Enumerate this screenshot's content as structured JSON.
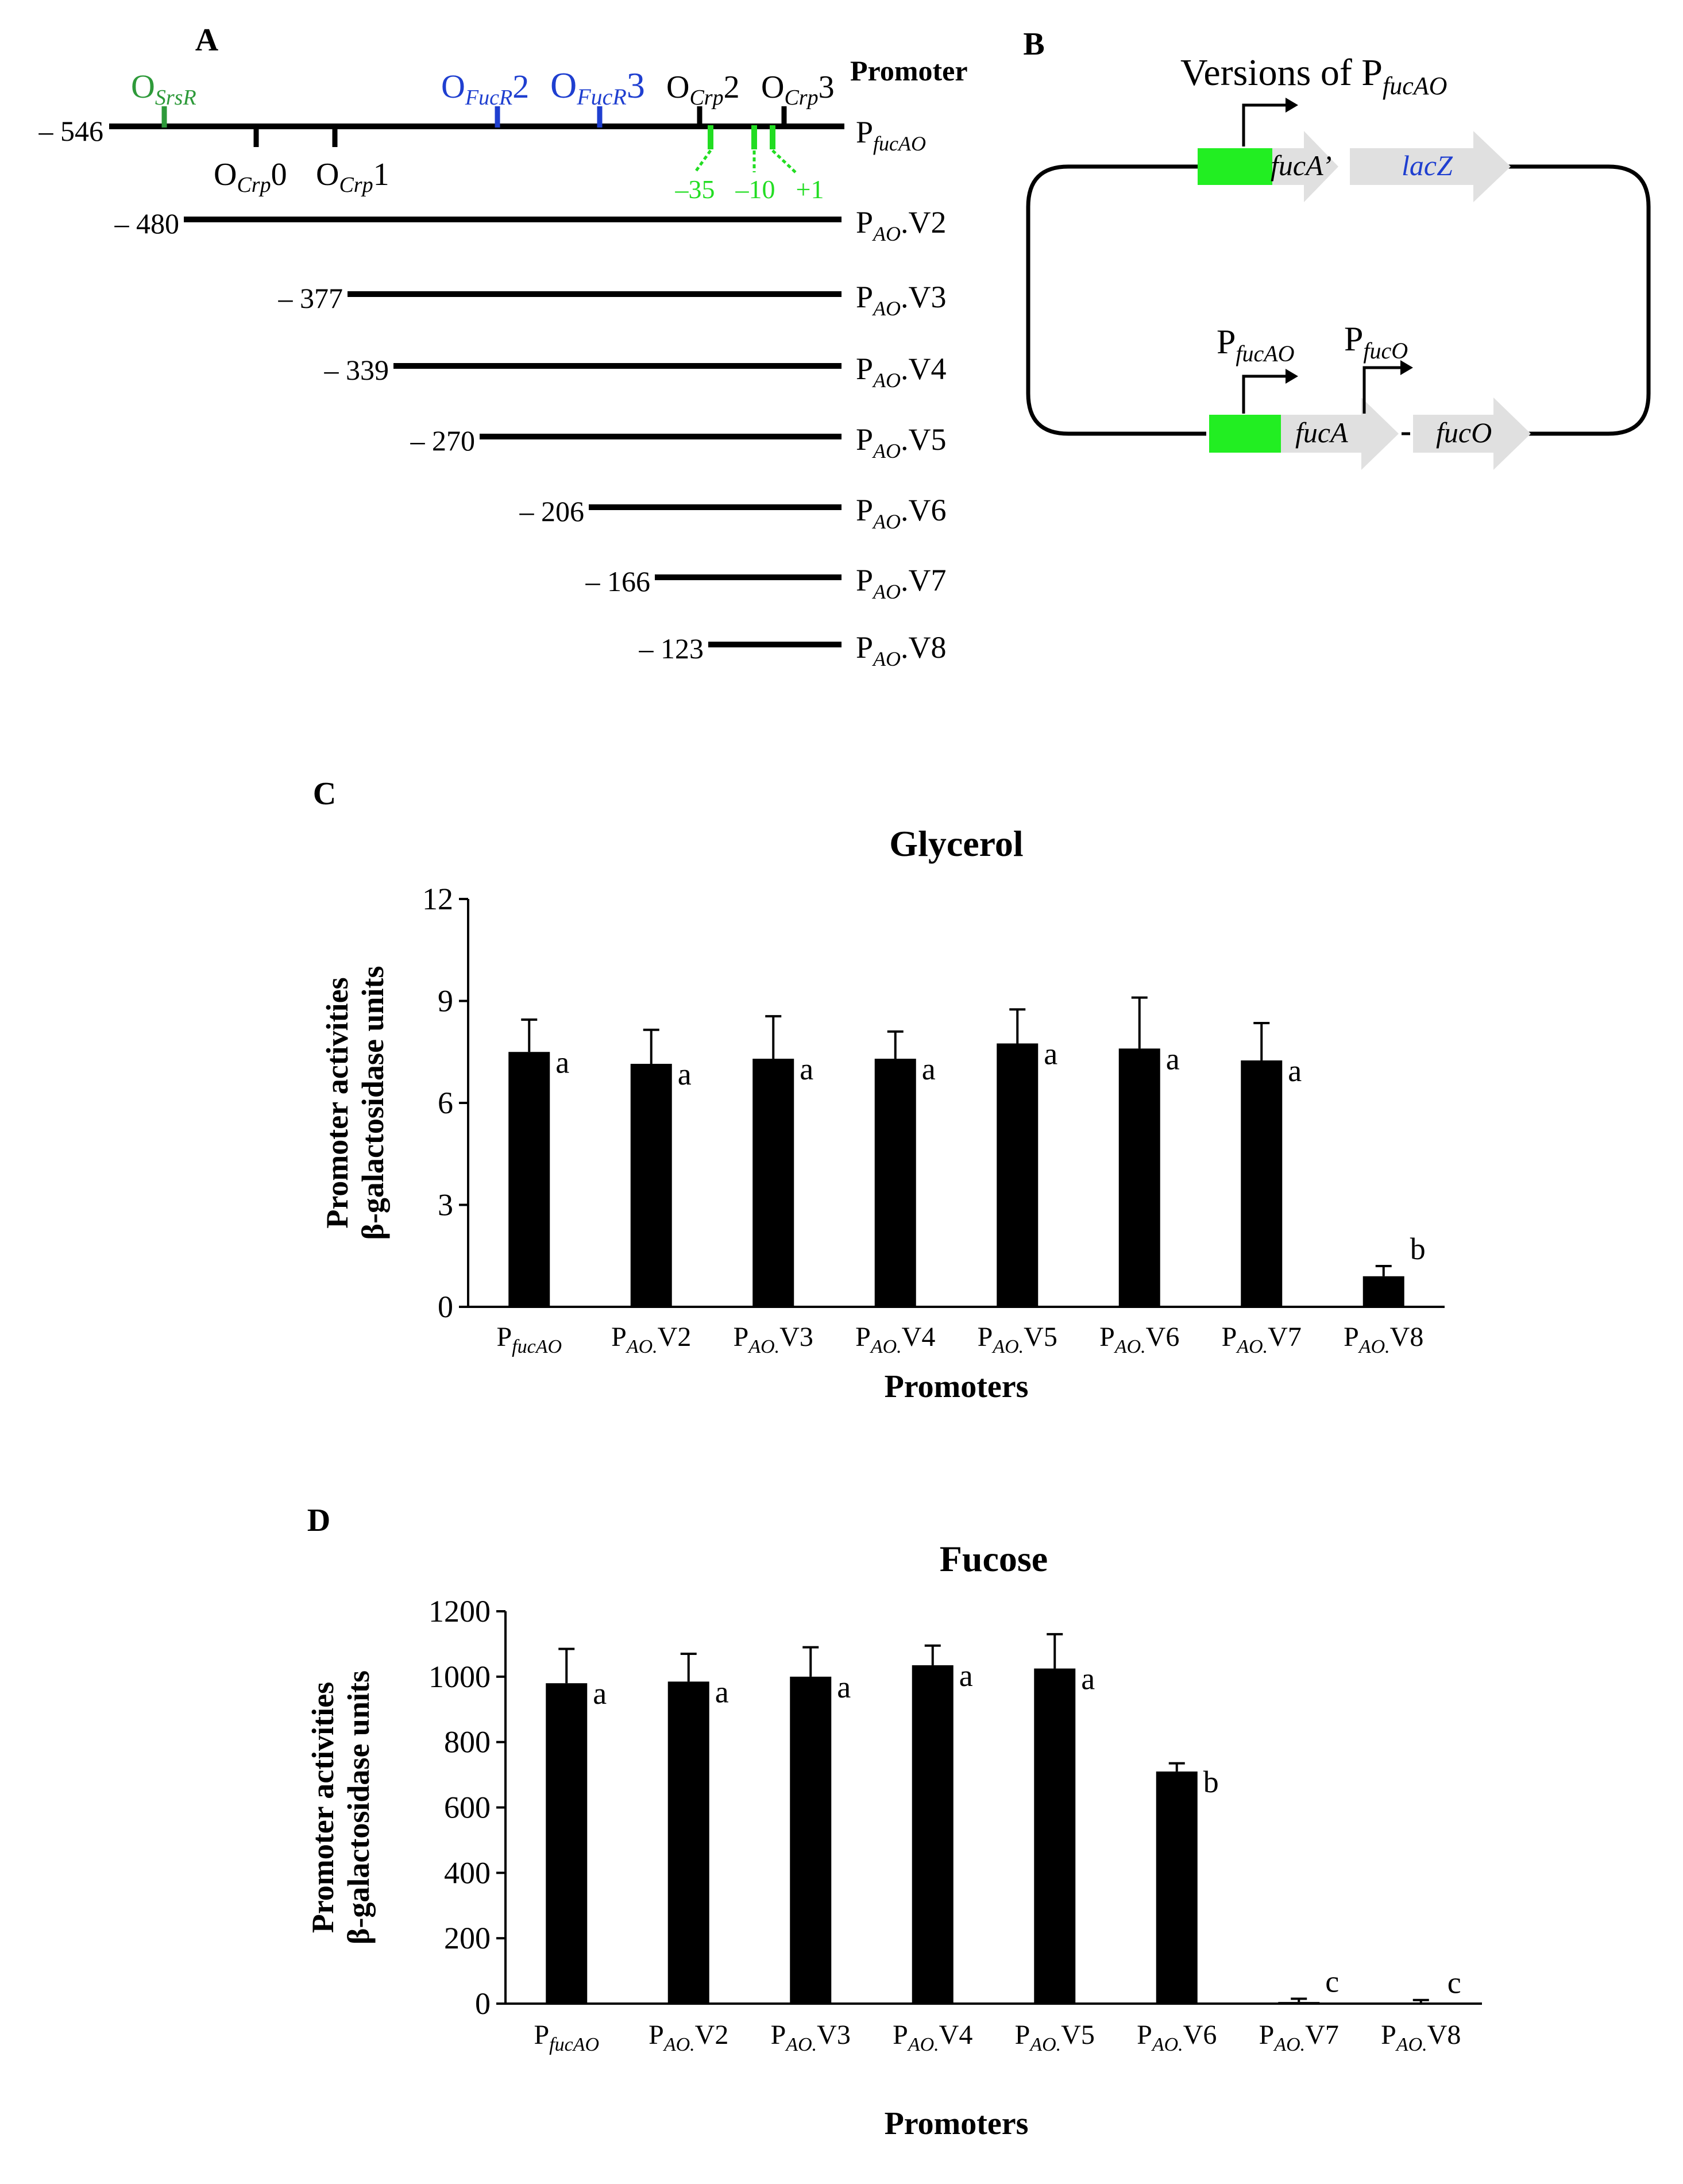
{
  "panels": {
    "A": {
      "letter": "A",
      "promoter_header": "Promoter"
    },
    "B": {
      "letter": "B",
      "title_main": "Versions of P",
      "title_sub": "fucAO",
      "plasmid_top": {
        "gene1": "fucA’",
        "gene2": "lacZ"
      },
      "plasmid_bottom": {
        "promoter1_main": "P",
        "promoter1_sub": "fucAO",
        "promoter2_main": "P",
        "promoter2_sub": "fucO",
        "gene1": "fucA",
        "gene2": "fucO"
      }
    },
    "C": {
      "letter": "C"
    },
    "D": {
      "letter": "D"
    }
  },
  "promoter_map": {
    "full": {
      "start": "– 546",
      "name_main": "P",
      "name_sub": "fucAO"
    },
    "sites_top": [
      {
        "main": "O",
        "sub": "SrsR",
        "color": "#2e9a3a"
      },
      {
        "main": "O",
        "sub": "FucR",
        "suffix": "2",
        "color": "#1f3fd0"
      },
      {
        "main": "O",
        "sub": "FucR",
        "suffix": "3",
        "color": "#1f3fd0"
      },
      {
        "main": "O",
        "sub": "Crp",
        "suffix": "2",
        "color": "#000000"
      },
      {
        "main": "O",
        "sub": "Crp",
        "suffix": "3",
        "color": "#000000"
      }
    ],
    "sites_bottom": [
      {
        "main": "O",
        "sub": "Crp",
        "suffix": "0"
      },
      {
        "main": "O",
        "sub": "Crp",
        "suffix": "1"
      }
    ],
    "core_elements": {
      "color": "#22dd22",
      "labels": [
        "–35",
        "–10",
        "+1"
      ]
    },
    "versions": [
      {
        "start": "– 480",
        "main": "P",
        "sub": "AO",
        "suffix": ".V2"
      },
      {
        "start": "– 377",
        "main": "P",
        "sub": "AO",
        "suffix": ".V3"
      },
      {
        "start": "– 339",
        "main": "P",
        "sub": "AO",
        "suffix": ".V4"
      },
      {
        "start": "– 270",
        "main": "P",
        "sub": "AO",
        "suffix": ".V5"
      },
      {
        "start": "– 206",
        "main": "P",
        "sub": "AO",
        "suffix": ".V6"
      },
      {
        "start": "– 166",
        "main": "P",
        "sub": "AO",
        "suffix": ".V7"
      },
      {
        "start": "– 123",
        "main": "P",
        "sub": "AO",
        "suffix": ".V8"
      }
    ]
  },
  "colors": {
    "bar": "#000000",
    "promoter_box": "#22ee22",
    "gene_arrow": "#e0e0e0",
    "lacz_text": "#1f3fd0"
  },
  "chart_data": [
    {
      "type": "bar",
      "title": "Glycerol",
      "xlabel": "Promoters",
      "ylabel_line1": "Promoter activities",
      "ylabel_line2": "β-galactosidase units",
      "ylim": [
        0,
        12
      ],
      "yticks": [
        "0",
        "3",
        "6",
        "9",
        "12"
      ],
      "categories": [
        {
          "main": "P",
          "sub": "fucAO",
          "suffix": ""
        },
        {
          "main": "P",
          "sub": "AO.",
          "suffix": "V2"
        },
        {
          "main": "P",
          "sub": "AO.",
          "suffix": "V3"
        },
        {
          "main": "P",
          "sub": "AO.",
          "suffix": "V4"
        },
        {
          "main": "P",
          "sub": "AO.",
          "suffix": "V5"
        },
        {
          "main": "P",
          "sub": "AO.",
          "suffix": "V6"
        },
        {
          "main": "P",
          "sub": "AO.",
          "suffix": "V7"
        },
        {
          "main": "P",
          "sub": "AO.",
          "suffix": "V8"
        }
      ],
      "values": [
        7.5,
        7.15,
        7.3,
        7.3,
        7.75,
        7.6,
        7.25,
        0.9
      ],
      "errors": [
        0.95,
        1.0,
        1.25,
        0.8,
        1.0,
        1.5,
        1.1,
        0.3
      ],
      "group_labels": [
        "a",
        "a",
        "a",
        "a",
        "a",
        "a",
        "a",
        "b"
      ],
      "grid": false
    },
    {
      "type": "bar",
      "title": "Fucose",
      "xlabel": "Promoters",
      "ylabel_line1": "Promoter activities",
      "ylabel_line2": "β-galactosidase units",
      "ylim": [
        0,
        1200
      ],
      "yticks": [
        "0",
        "200",
        "400",
        "600",
        "800",
        "1000",
        "1200"
      ],
      "categories": [
        {
          "main": "P",
          "sub": "fucAO",
          "suffix": ""
        },
        {
          "main": "P",
          "sub": "AO.",
          "suffix": "V2"
        },
        {
          "main": "P",
          "sub": "AO.",
          "suffix": "V3"
        },
        {
          "main": "P",
          "sub": "AO.",
          "suffix": "V4"
        },
        {
          "main": "P",
          "sub": "AO.",
          "suffix": "V5"
        },
        {
          "main": "P",
          "sub": "AO.",
          "suffix": "V6"
        },
        {
          "main": "P",
          "sub": "AO.",
          "suffix": "V7"
        },
        {
          "main": "P",
          "sub": "AO.",
          "suffix": "V8"
        }
      ],
      "values": [
        980,
        985,
        1000,
        1035,
        1025,
        710,
        5,
        3
      ],
      "errors": [
        105,
        85,
        90,
        60,
        105,
        25,
        10,
        8
      ],
      "group_labels": [
        "a",
        "a",
        "a",
        "a",
        "a",
        "b",
        "c",
        "c"
      ],
      "grid": false
    }
  ]
}
